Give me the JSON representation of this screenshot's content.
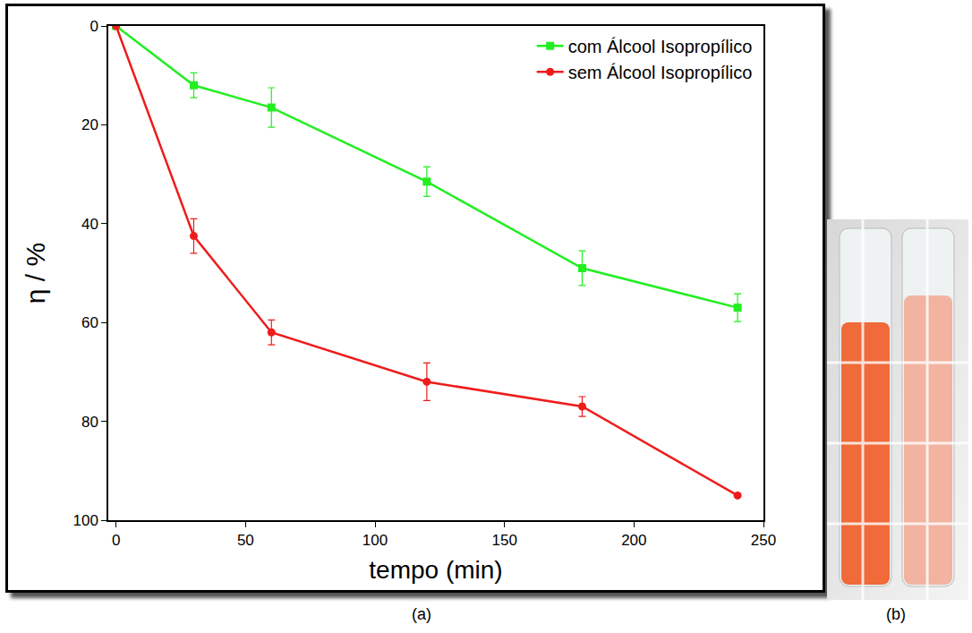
{
  "chart_data": {
    "type": "line",
    "x_label": "tempo (min)",
    "y_label": "η / %",
    "xlim": [
      -3,
      250
    ],
    "xticks": [
      0,
      50,
      100,
      150,
      200,
      250
    ],
    "ylim": [
      100,
      0
    ],
    "yticks": [
      0,
      20,
      40,
      60,
      80,
      100
    ],
    "grid": false,
    "legend": "upper right",
    "series": [
      {
        "name": "com Álcool Isopropílico",
        "color": "#22ee22",
        "marker": "square",
        "line_style": "solid",
        "x": [
          0,
          30,
          60,
          120,
          180,
          240
        ],
        "values": [
          0,
          12,
          16.5,
          31.5,
          49,
          57
        ],
        "errors": [
          0,
          2.5,
          4,
          3,
          3.5,
          2.8
        ]
      },
      {
        "name": "sem Álcool Isopropílico",
        "color": "#ee1c1c",
        "marker": "circle",
        "line_style": "solid",
        "x": [
          0,
          30,
          60,
          120,
          180,
          240
        ],
        "values": [
          0,
          42.5,
          62,
          72,
          77,
          95
        ],
        "errors": [
          0,
          3.5,
          2.5,
          3.8,
          2,
          0
        ]
      }
    ],
    "panel_labels": [
      "(a)",
      "(b)"
    ]
  }
}
